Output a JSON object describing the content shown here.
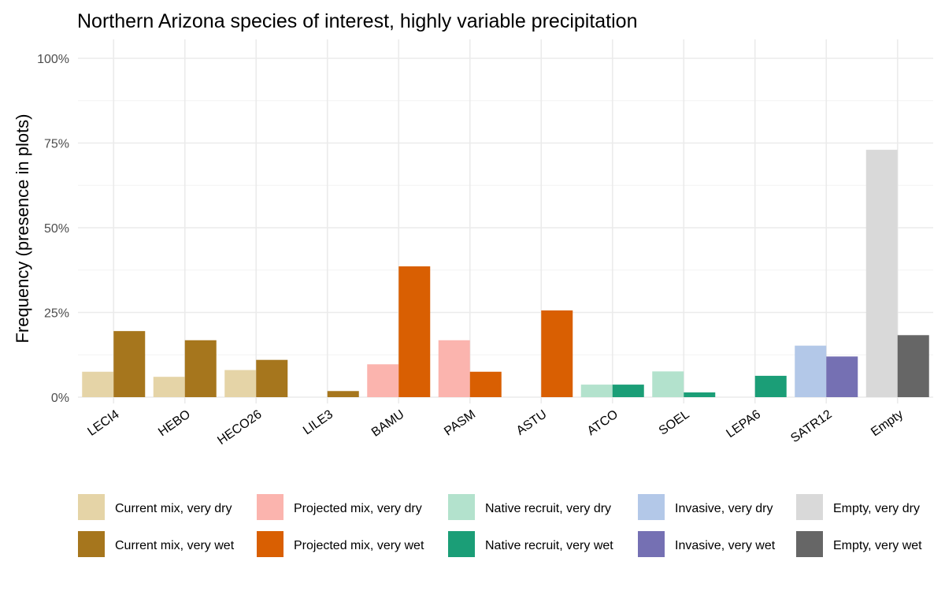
{
  "chart_data": {
    "type": "bar",
    "title": "Northern Arizona species of interest, highly variable precipitation",
    "ylabel": "Frequency (presence in plots)",
    "xlabel": "",
    "ylim": [
      0,
      100
    ],
    "yticks": [
      0,
      25,
      50,
      75,
      100
    ],
    "ytick_labels": [
      "0%",
      "25%",
      "50%",
      "75%",
      "100%"
    ],
    "grid": true,
    "legend_position": "bottom",
    "categories": [
      "LECI4",
      "HEBO",
      "HECO26",
      "LILE3",
      "BAMU",
      "PASM",
      "ASTU",
      "ATCO",
      "SOEL",
      "LEPA6",
      "SATR12",
      "Empty"
    ],
    "series": [
      {
        "name": "Current mix, very dry",
        "color": "#e5d4a7",
        "values": [
          7.5,
          6.0,
          8.0,
          null,
          null,
          null,
          null,
          null,
          null,
          null,
          null,
          null
        ]
      },
      {
        "name": "Current mix, very wet",
        "color": "#a6761d",
        "values": [
          19.5,
          16.8,
          11.0,
          1.8,
          null,
          null,
          null,
          null,
          null,
          null,
          null,
          null
        ]
      },
      {
        "name": "Projected mix, very dry",
        "color": "#fbb4ae",
        "values": [
          null,
          null,
          null,
          null,
          9.7,
          16.8,
          null,
          null,
          null,
          null,
          null,
          null
        ]
      },
      {
        "name": "Projected mix, very wet",
        "color": "#d95f02",
        "values": [
          null,
          null,
          null,
          null,
          38.6,
          7.5,
          25.6,
          null,
          null,
          null,
          null,
          null
        ]
      },
      {
        "name": "Native recruit, very dry",
        "color": "#b3e2cd",
        "values": [
          null,
          null,
          null,
          null,
          null,
          null,
          null,
          3.7,
          7.6,
          null,
          null,
          null
        ]
      },
      {
        "name": "Native recruit, very wet",
        "color": "#1b9e77",
        "values": [
          null,
          null,
          null,
          null,
          null,
          null,
          null,
          3.7,
          1.4,
          6.3,
          null,
          null
        ]
      },
      {
        "name": "Invasive, very dry",
        "color": "#b3c8e8",
        "values": [
          null,
          null,
          null,
          null,
          null,
          null,
          null,
          null,
          null,
          null,
          15.2,
          null
        ]
      },
      {
        "name": "Invasive, very wet",
        "color": "#7570b3",
        "values": [
          null,
          null,
          null,
          null,
          null,
          null,
          null,
          null,
          null,
          null,
          12.0,
          null
        ]
      },
      {
        "name": "Empty, very dry",
        "color": "#d9d9d9",
        "values": [
          null,
          null,
          null,
          null,
          null,
          null,
          null,
          null,
          null,
          null,
          null,
          73.0
        ]
      },
      {
        "name": "Empty, very wet",
        "color": "#666666",
        "values": [
          null,
          null,
          null,
          null,
          null,
          null,
          null,
          null,
          null,
          null,
          null,
          18.3
        ]
      }
    ],
    "bar_pairs": [
      [
        "Current mix, very dry",
        "Current mix, very wet"
      ],
      [
        "Current mix, very dry",
        "Current mix, very wet"
      ],
      [
        "Current mix, very dry",
        "Current mix, very wet"
      ],
      [
        "Current mix, very dry",
        "Current mix, very wet"
      ],
      [
        "Projected mix, very dry",
        "Projected mix, very wet"
      ],
      [
        "Projected mix, very dry",
        "Projected mix, very wet"
      ],
      [
        "Projected mix, very dry",
        "Projected mix, very wet"
      ],
      [
        "Native recruit, very dry",
        "Native recruit, very wet"
      ],
      [
        "Native recruit, very dry",
        "Native recruit, very wet"
      ],
      [
        "Native recruit, very dry",
        "Native recruit, very wet"
      ],
      [
        "Invasive, very dry",
        "Invasive, very wet"
      ],
      [
        "Empty, very dry",
        "Empty, very wet"
      ]
    ]
  }
}
